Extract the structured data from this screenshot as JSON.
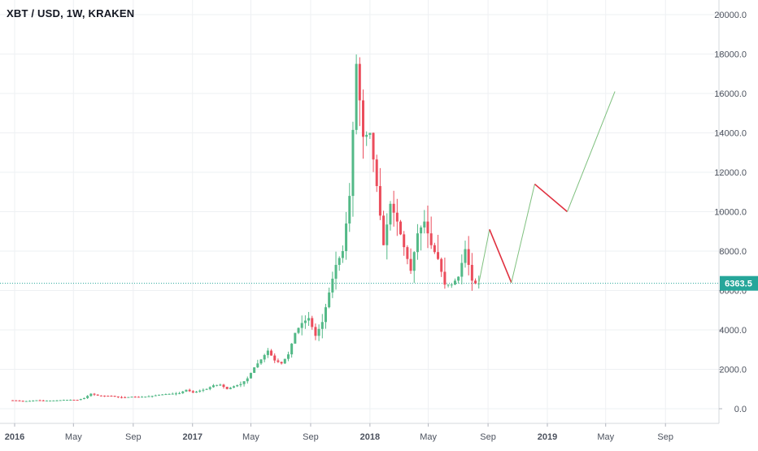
{
  "header": {
    "title": "XBT / USD, 1W, KRAKEN"
  },
  "colors": {
    "up": "#53b987",
    "down": "#eb4d5c",
    "grid": "#eef0f3",
    "axis_text": "#4c525e",
    "price_line": "#26a69a",
    "price_badge": "#26a69a",
    "projection_up": "#7ec07e",
    "projection_down": "#e0303f"
  },
  "chart_data": {
    "type": "candlestick",
    "title": "XBT / USD, 1W, KRAKEN",
    "x_axis": {
      "type": "time",
      "ticks": [
        "2016",
        "May",
        "Sep",
        "2017",
        "May",
        "Sep",
        "2018",
        "May",
        "Sep",
        "2019",
        "May",
        "Sep"
      ],
      "bold_ticks": [
        "2016",
        "2017",
        "2018",
        "2019"
      ],
      "range": [
        "2015-12",
        "2019-12"
      ]
    },
    "y_axis": {
      "ticks": [
        "0.0",
        "2000.0",
        "4000.0",
        "6000.0",
        "8000.0",
        "10000.0",
        "12000.0",
        "14000.0",
        "16000.0",
        "18000.0",
        "20000.0"
      ],
      "ylim": [
        -600,
        20700
      ],
      "position": "right"
    },
    "grid": true,
    "current_price": {
      "value": 6363.5,
      "label": "6363.5"
    },
    "price_series": [
      [
        "2015-12-28",
        430
      ],
      [
        "2016-01-11",
        420
      ],
      [
        "2016-01-25",
        380
      ],
      [
        "2016-02-08",
        400
      ],
      [
        "2016-02-22",
        430
      ],
      [
        "2016-03-07",
        415
      ],
      [
        "2016-03-21",
        415
      ],
      [
        "2016-04-04",
        422
      ],
      [
        "2016-04-18",
        450
      ],
      [
        "2016-05-02",
        455
      ],
      [
        "2016-05-16",
        445
      ],
      [
        "2016-05-30",
        540
      ],
      [
        "2016-06-13",
        760
      ],
      [
        "2016-06-27",
        670
      ],
      [
        "2016-07-11",
        660
      ],
      [
        "2016-07-25",
        655
      ],
      [
        "2016-08-08",
        590
      ],
      [
        "2016-08-22",
        575
      ],
      [
        "2016-09-05",
        610
      ],
      [
        "2016-09-19",
        600
      ],
      [
        "2016-10-03",
        615
      ],
      [
        "2016-10-17",
        650
      ],
      [
        "2016-10-31",
        710
      ],
      [
        "2016-11-14",
        740
      ],
      [
        "2016-11-28",
        760
      ],
      [
        "2016-12-12",
        790
      ],
      [
        "2016-12-26",
        960
      ],
      [
        "2017-01-09",
        820
      ],
      [
        "2017-01-23",
        920
      ],
      [
        "2017-02-06",
        1000
      ],
      [
        "2017-02-20",
        1190
      ],
      [
        "2017-03-06",
        1220
      ],
      [
        "2017-03-20",
        1000
      ],
      [
        "2017-04-03",
        1140
      ],
      [
        "2017-04-17",
        1250
      ],
      [
        "2017-05-01",
        1540
      ],
      [
        "2017-05-15",
        2100
      ],
      [
        "2017-05-29",
        2500
      ],
      [
        "2017-06-12",
        2950
      ],
      [
        "2017-06-26",
        2450
      ],
      [
        "2017-07-10",
        2300
      ],
      [
        "2017-07-24",
        2760
      ],
      [
        "2017-08-07",
        3850
      ],
      [
        "2017-08-21",
        4350
      ],
      [
        "2017-09-04",
        4600
      ],
      [
        "2017-09-18",
        3700
      ],
      [
        "2017-10-02",
        4400
      ],
      [
        "2017-10-16",
        5900
      ],
      [
        "2017-10-30",
        7300
      ],
      [
        "2017-11-13",
        8000
      ],
      [
        "2017-11-27",
        10800
      ],
      [
        "2017-12-11",
        17500
      ],
      [
        "2017-12-25",
        13800
      ],
      [
        "2018-01-08",
        14000
      ],
      [
        "2018-01-22",
        11300
      ],
      [
        "2018-02-05",
        8300
      ],
      [
        "2018-02-19",
        10400
      ],
      [
        "2018-03-05",
        9500
      ],
      [
        "2018-03-19",
        8200
      ],
      [
        "2018-04-02",
        7000
      ],
      [
        "2018-04-16",
        8900
      ],
      [
        "2018-04-30",
        9500
      ],
      [
        "2018-05-14",
        8300
      ],
      [
        "2018-05-28",
        7600
      ],
      [
        "2018-06-11",
        6300
      ],
      [
        "2018-06-25",
        6300
      ],
      [
        "2018-07-09",
        6700
      ],
      [
        "2018-07-23",
        8100
      ],
      [
        "2018-08-06",
        6500
      ],
      [
        "2018-08-13",
        6363.5
      ]
    ],
    "projection": [
      {
        "date": "2018-08-13",
        "value": 6363.5
      },
      {
        "date": "2018-09-04",
        "value": 9100
      },
      {
        "date": "2018-10-19",
        "value": 6400
      },
      {
        "date": "2018-12-06",
        "value": 11400
      },
      {
        "date": "2019-02-11",
        "value": 10000
      },
      {
        "date": "2019-05-20",
        "value": 16100
      }
    ]
  }
}
